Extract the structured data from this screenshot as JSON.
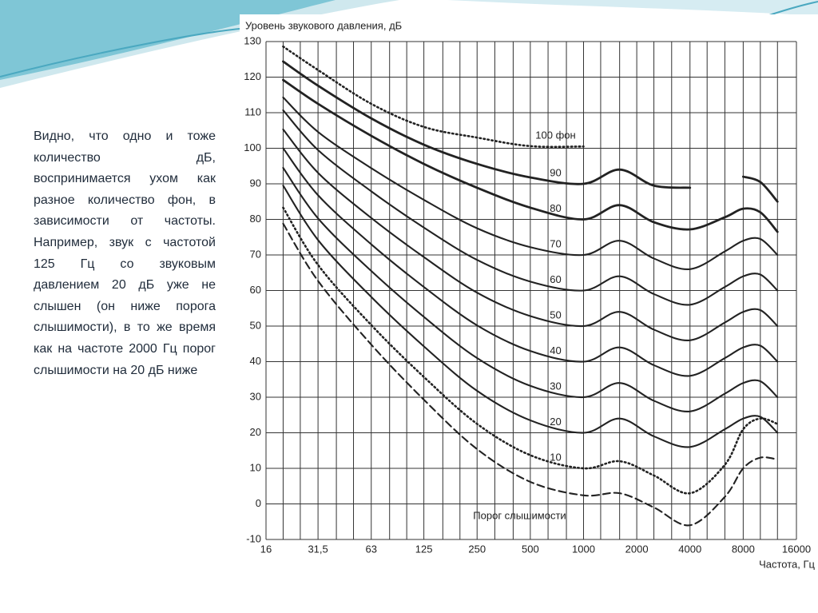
{
  "body_text": "Видно, что одно и тоже количество дБ, воспринимается ухом как разное количество фон, в зависимости от частоты.   Например, звук с частотой 125 Гц со звуковым давлением 20 дБ уже не слышен (он ниже порога слышимости), в то же время как на частоте 2000 Гц порог слышимости на 20 дБ ниже",
  "chart_data": {
    "type": "line",
    "y_label": "Уровень звукового давления, дБ",
    "x_label": "Частота, Гц",
    "x_scale": "log",
    "grid": true,
    "color": "#222222",
    "x": [
      20,
      31.5,
      63,
      125,
      250,
      500,
      1000,
      1600,
      2500,
      4000,
      6300,
      8000,
      10000,
      12500
    ],
    "xlim": [
      16,
      16000
    ],
    "xticks": [
      16,
      {
        "value": 31.5,
        "label": "31,5"
      },
      63,
      125,
      250,
      500,
      1000,
      2000,
      4000,
      8000,
      16000
    ],
    "xgrid_minor": [
      20,
      25,
      40,
      50,
      80,
      100,
      160,
      200,
      315,
      400,
      630,
      800,
      1250,
      1600,
      2500,
      3150,
      5000,
      6300,
      10000,
      12500
    ],
    "ylim": [
      -10,
      130
    ],
    "yticks": [
      -10,
      0,
      10,
      20,
      30,
      40,
      50,
      60,
      70,
      80,
      90,
      100,
      110,
      120,
      130
    ],
    "series": [
      {
        "name": "100 фон",
        "style": "dotted",
        "weight": "normal",
        "values": [
          128.6,
          122,
          112.5,
          106,
          103,
          100.6,
          100.5,
          null,
          null,
          null,
          null,
          null,
          null,
          null
        ]
      },
      {
        "name": "90",
        "style": "solid",
        "weight": "bold",
        "values": [
          124.4,
          117.6,
          108.4,
          101,
          95.6,
          91.8,
          90,
          94,
          89.5,
          88.9,
          null,
          92,
          90.5,
          85
        ]
      },
      {
        "name": "80",
        "style": "solid",
        "weight": "bold",
        "values": [
          119.2,
          112.5,
          103.5,
          95.6,
          88.9,
          83.3,
          80,
          84,
          79.2,
          77.2,
          80.6,
          83,
          82,
          76.5
        ]
      },
      {
        "name": "70",
        "style": "solid",
        "weight": "normal",
        "values": [
          114.3,
          104.6,
          94.4,
          85.5,
          77.5,
          72.2,
          70,
          74,
          69,
          66,
          71,
          74,
          74.5,
          70
        ]
      },
      {
        "name": "60",
        "style": "solid",
        "weight": "normal",
        "values": [
          110.7,
          99.5,
          87.9,
          77.7,
          68.6,
          62.5,
          60,
          64,
          59,
          56,
          61,
          64,
          64.5,
          60
        ]
      },
      {
        "name": "50",
        "style": "solid",
        "weight": "normal",
        "values": [
          105.3,
          93.1,
          80.4,
          69.4,
          59.4,
          52.8,
          50,
          54,
          49,
          46,
          51,
          54,
          54.5,
          50
        ]
      },
      {
        "name": "40",
        "style": "solid",
        "weight": "normal",
        "values": [
          100,
          86.8,
          73,
          61,
          50.2,
          43,
          40,
          44,
          39,
          36,
          41,
          44,
          44.5,
          40
        ]
      },
      {
        "name": "30",
        "style": "solid",
        "weight": "normal",
        "values": [
          94.5,
          80.3,
          65.5,
          52.6,
          41,
          33.2,
          30,
          34,
          29,
          26,
          31,
          34,
          34.5,
          30
        ]
      },
      {
        "name": "20",
        "style": "solid",
        "weight": "normal",
        "values": [
          89.5,
          74.2,
          58.2,
          44.3,
          31.8,
          23.5,
          20,
          24,
          19,
          16,
          21,
          24,
          24.5,
          20
        ]
      },
      {
        "name": "10",
        "style": "dotted",
        "weight": "normal",
        "values": [
          83.3,
          67.2,
          50.3,
          35.7,
          22.5,
          13.7,
          10,
          12,
          8,
          3,
          11,
          21,
          24,
          22.5
        ]
      },
      {
        "name": "Порог слышимости",
        "style": "dashed",
        "weight": "normal",
        "label_position": "below",
        "values": [
          78.8,
          62.7,
          44.8,
          29.3,
          15.4,
          6.2,
          2.4,
          3,
          -1,
          -6,
          2,
          10,
          13,
          12.5
        ]
      }
    ]
  }
}
